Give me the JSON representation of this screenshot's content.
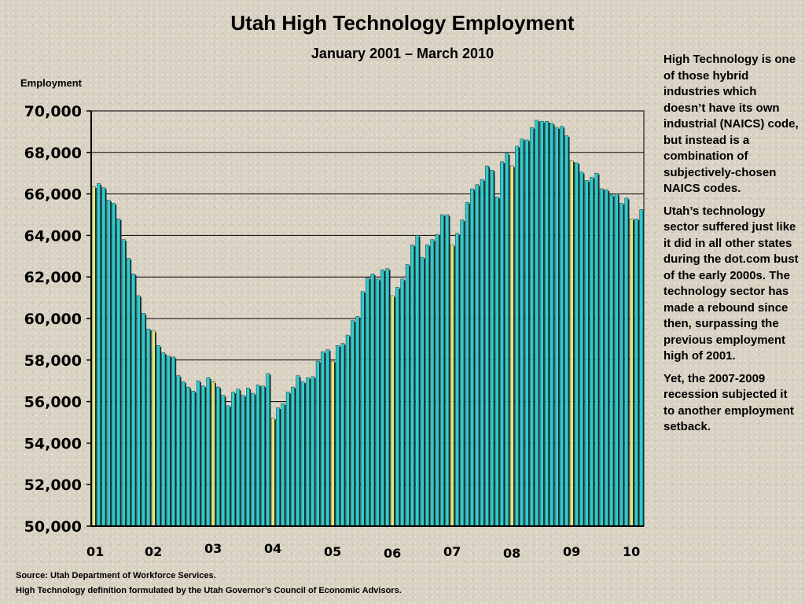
{
  "chart_data": {
    "type": "bar",
    "title": "Utah High Technology Employment",
    "subtitle": "January 2001 – March 2010",
    "ylabel": "Employment",
    "xlabel": "",
    "ylim": [
      50000,
      70000
    ],
    "yticks": [
      "50,000",
      "52,000",
      "54,000",
      "56,000",
      "58,000",
      "60,000",
      "62,000",
      "64,000",
      "66,000",
      "68,000",
      "70,000"
    ],
    "year_labels": [
      "01",
      "02",
      "03",
      "04",
      "05",
      "06",
      "07",
      "08",
      "09",
      "10"
    ],
    "grid": true,
    "highlight": "January bars shown in yellow",
    "series": [
      {
        "values": [
          66350,
          66500,
          66300,
          65700,
          65550,
          64800,
          63800,
          62900,
          62150,
          61100,
          60250,
          59500,
          59400,
          58700,
          58350,
          58200,
          58150,
          57250,
          56950,
          56700,
          56500,
          57000,
          56750,
          57150,
          56950,
          56700,
          56300,
          55800,
          56450,
          56600,
          56300,
          56650,
          56400,
          56800,
          56750,
          57350,
          55200,
          55700,
          55900,
          56450,
          56700,
          57250,
          56950,
          57150,
          57200,
          57950,
          58400,
          58500,
          57950,
          58700,
          58800,
          59200,
          59900,
          60100,
          61300,
          61950,
          62150,
          61900,
          62350,
          62400,
          61100,
          61500,
          61900,
          62600,
          63550,
          64000,
          62950,
          63550,
          63800,
          64050,
          65000,
          65000,
          63550,
          64100,
          64750,
          65600,
          66250,
          66450,
          66700,
          67350,
          67150,
          65850,
          67550,
          67950,
          67350,
          68300,
          68650,
          68600,
          69200,
          69550,
          69500,
          69500,
          69400,
          69200,
          69250,
          68800,
          67600,
          67500,
          67050,
          66650,
          66800,
          67000,
          66250,
          66200,
          65950,
          66000,
          65550,
          65800,
          64800,
          64800,
          65250
        ]
      }
    ]
  },
  "sidebar": {
    "p1": "High Technology is one of those hybrid industries which doesn’t have its own industrial (NAICS) code, but instead is a combination of subjectively-chosen NAICS codes.",
    "p2": "Utah’s technology sector suffered just like it did in all other states during the dot.com bust of the early 2000s. The technology sector has made a rebound since then, surpassing the previous employment high of 2001.",
    "p3": "Yet, the 2007-2009 recession subjected it to another employment setback."
  },
  "footer": {
    "source": "Source: Utah Department of Workforce Services.",
    "definition": "High Technology definition formulated by the Utah Governor’s Council of Economic Advisors."
  },
  "colors": {
    "bar_fill": "#33c9cc",
    "bar_fill_highlight": "#e9e37a",
    "bar_shadow": "#0a2d2d",
    "grid": "#000000"
  }
}
